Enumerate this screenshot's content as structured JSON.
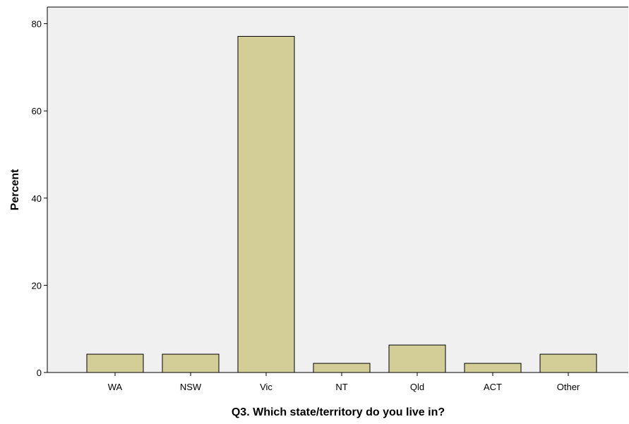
{
  "chart_data": {
    "type": "bar",
    "title": "",
    "xlabel": "Q3. Which state/territory do you live in?",
    "ylabel": "Percent",
    "categories": [
      "WA",
      "NSW",
      "Vic",
      "NT",
      "Qld",
      "ACT",
      "Other"
    ],
    "values": [
      4.2,
      4.2,
      77.1,
      2.1,
      6.3,
      2.1,
      4.2
    ],
    "ylim": [
      0,
      80
    ],
    "yticks": [
      "0",
      "20",
      "40",
      "60",
      "80"
    ],
    "grid": false,
    "legend": "none",
    "colors": {
      "bar_fill": "#d3ce97",
      "bar_stroke": "#000000",
      "plot_background": "#f0f0f0"
    }
  }
}
